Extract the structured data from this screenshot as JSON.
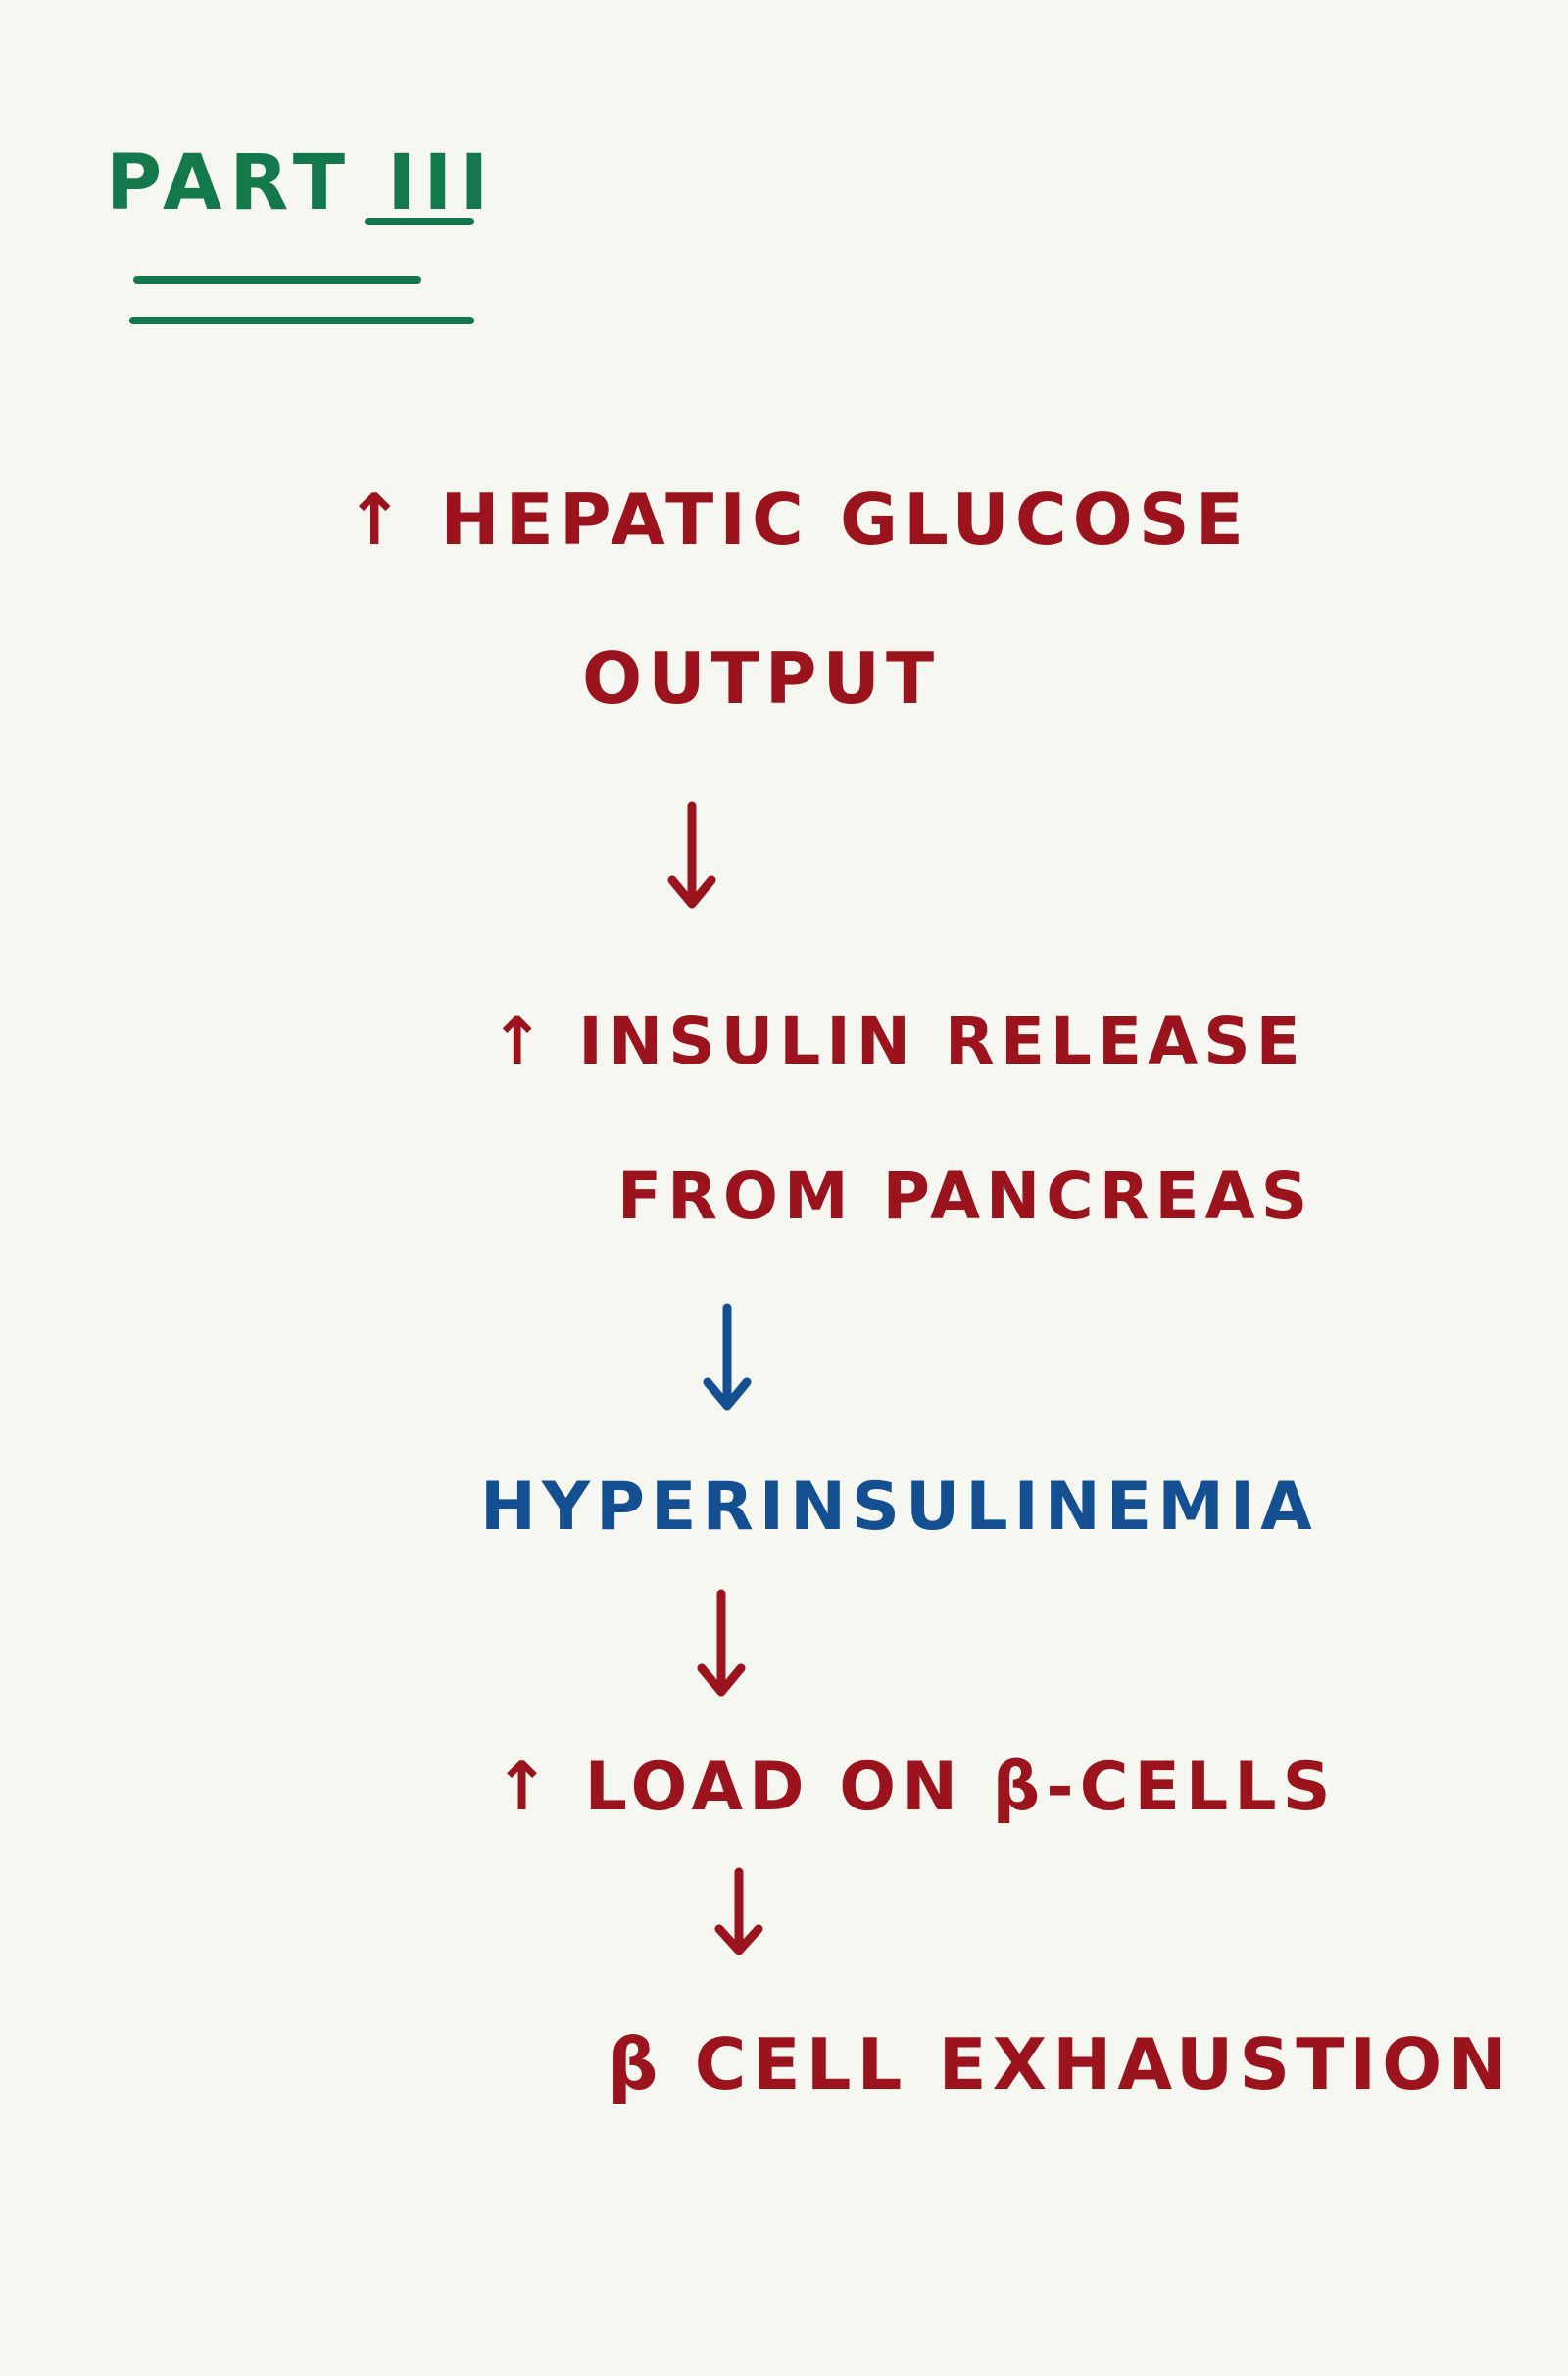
{
  "title": "PART III",
  "flow": {
    "step1_line1": "↑ HEPATIC GLUCOSE",
    "step1_line2": "OUTPUT",
    "step2_line1": "↑ INSULIN RELEASE",
    "step2_line2": "FROM PANCREAS",
    "step3_line1": "HYPERINSULINEMIA",
    "step4_line1": "↑ LOAD ON β-CELLS",
    "step5_line1": "β CELL EXHAUSTION"
  },
  "colors": {
    "background": "#f7f7f2",
    "title": "#14794a",
    "main_text": "#9b141d",
    "highlight": "#144f92"
  },
  "icons": {
    "down_arrow": "down-arrow-icon"
  }
}
